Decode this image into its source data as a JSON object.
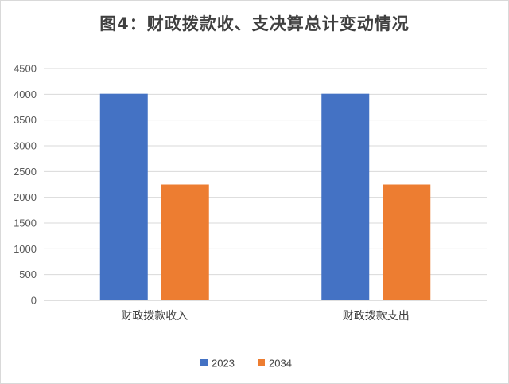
{
  "chart_data": {
    "type": "bar",
    "title": "图4：财政拨款收、支决算总计变动情况",
    "categories": [
      "财政拨款收入",
      "财政拨款支出"
    ],
    "series": [
      {
        "name": "2023",
        "color": "#4472C4",
        "values": [
          4010,
          4010
        ]
      },
      {
        "name": "2034",
        "color": "#ED7D31",
        "values": [
          2250,
          2250
        ]
      }
    ],
    "ylim": [
      0,
      4500
    ],
    "yticks": [
      0,
      500,
      1000,
      1500,
      2000,
      2500,
      3000,
      3500,
      4000,
      4500
    ],
    "grid": true,
    "legend": "bottom"
  }
}
